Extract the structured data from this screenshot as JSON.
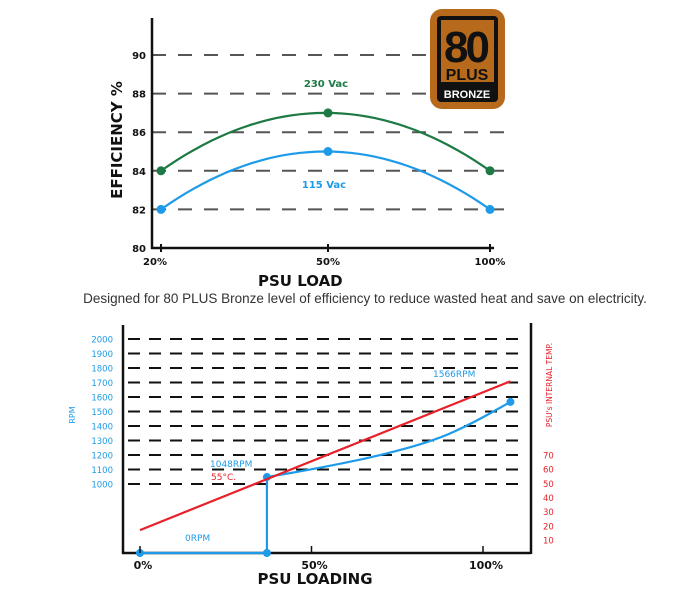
{
  "caption": "Designed for 80 PLUS Bronze level of efficiency to reduce wasted heat and save on electricity.",
  "badge": {
    "number": "80",
    "plus": "PLUS",
    "level": "BRONZE",
    "color": "#b86a1c"
  },
  "chart_data": [
    {
      "type": "line",
      "categories": [
        "20%",
        "50%",
        "100%"
      ],
      "xlabel": "PSU LOAD",
      "ylabel": "EFFICIENCY %",
      "ylim": [
        80,
        90
      ],
      "yticks": [
        "80",
        "82",
        "84",
        "86",
        "88",
        "90"
      ],
      "grid": "dashed horizontal",
      "series": [
        {
          "name": "230 Vac",
          "values": [
            84,
            87,
            84
          ],
          "color": "#1d7a44"
        },
        {
          "name": "115 Vac",
          "values": [
            82,
            85,
            82
          ],
          "color": "#1e9be8"
        }
      ]
    },
    {
      "type": "line",
      "xlabel": "PSU LOADING",
      "xticks": [
        "0%",
        "50%",
        "100%"
      ],
      "ylabel_left": "RPM",
      "ylabel_right": "PSU's INTERNAL TEMP.",
      "yticks_left": [
        "2000",
        "1900",
        "1800",
        "1700",
        "1600",
        "1500",
        "1400",
        "1300",
        "1200",
        "1100",
        "1000"
      ],
      "yticks_right": [
        "70",
        "60",
        "50",
        "40",
        "30",
        "20",
        "10"
      ],
      "grid": "dashed horizontal",
      "series": [
        {
          "axis": "RPM",
          "color": "#1e9be8",
          "points": [
            [
              0,
              0
            ],
            [
              37,
              0
            ],
            [
              37,
              1048
            ],
            [
              50,
              1100
            ],
            [
              69,
              1190
            ],
            [
              86,
              1300
            ],
            [
              97,
              1420
            ],
            [
              108,
              1566
            ]
          ],
          "markers": [
            [
              0,
              0
            ],
            [
              37,
              0
            ],
            [
              37,
              1048
            ],
            [
              108,
              1566
            ]
          ]
        },
        {
          "axis": "temp",
          "color": "#e8202a",
          "points": [
            [
              0,
              17
            ],
            [
              108,
              122
            ]
          ]
        }
      ],
      "annotations": [
        {
          "text": "1048RPM",
          "color": "#1e9be8"
        },
        {
          "text": "55°C.",
          "color": "#e8202a"
        },
        {
          "text": "1566RPM",
          "color": "#1e9be8"
        },
        {
          "text": "0RPM",
          "color": "#1e9be8"
        }
      ]
    }
  ]
}
